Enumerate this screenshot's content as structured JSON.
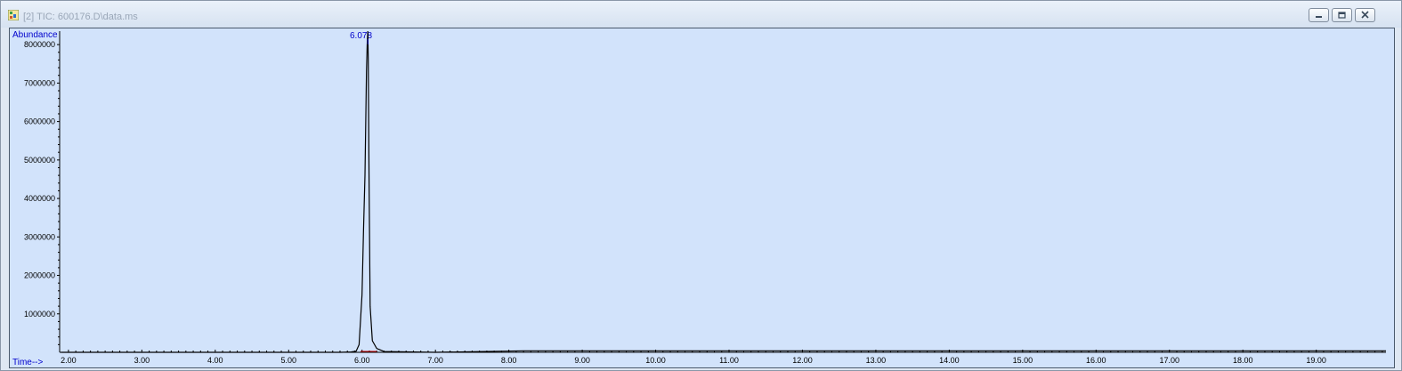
{
  "window": {
    "title": "[2] TIC: 600176.D\\data.ms",
    "icon": "chromatogram-icon",
    "controls": [
      "minimize-icon",
      "restore-icon",
      "close-icon"
    ]
  },
  "chart_data": {
    "type": "line",
    "ylabel": "Abundance",
    "xlabel": "Time-->",
    "xlim": [
      1.88,
      19.95
    ],
    "ylim": [
      0,
      8350000
    ],
    "x_ticks": [
      "2.00",
      "3.00",
      "4.00",
      "5.00",
      "6.00",
      "7.00",
      "8.00",
      "9.00",
      "10.00",
      "11.00",
      "12.00",
      "13.00",
      "14.00",
      "15.00",
      "16.00",
      "17.00",
      "18.00",
      "19.00"
    ],
    "y_ticks": [
      "1000000",
      "2000000",
      "3000000",
      "4000000",
      "5000000",
      "6000000",
      "7000000",
      "8000000"
    ],
    "peak_label": "6.078",
    "peak": {
      "x": 6.078,
      "y": 8350000
    },
    "series": [
      {
        "x": [
          1.9,
          5.7,
          5.85,
          5.92,
          5.96,
          6.0,
          6.02,
          6.04,
          6.06,
          6.07,
          6.078,
          6.085,
          6.095,
          6.11,
          6.14,
          6.2,
          6.3,
          7.0,
          8.2,
          19.95
        ],
        "y": [
          0,
          0,
          10000,
          30000,
          200000,
          1500000,
          3200000,
          4600000,
          7300000,
          8000000,
          8350000,
          7600000,
          4500000,
          1200000,
          300000,
          100000,
          20000,
          0,
          40000,
          40000
        ]
      }
    ],
    "colors": {
      "background": "#d2e3fb",
      "trace": "#000000",
      "labels": "#0000cc",
      "baseline_marks": "#cc0000"
    }
  }
}
